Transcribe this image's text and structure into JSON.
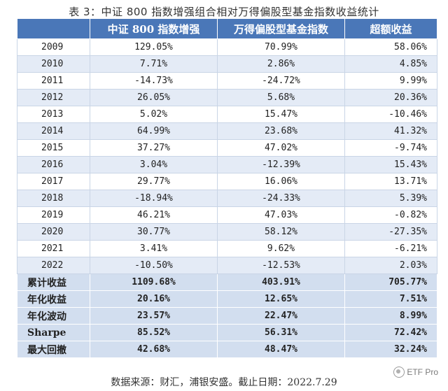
{
  "title": "表 3：中证 800 指数增强组合相对万得偏股型基金指数收益统计",
  "headers": [
    "",
    "中证 800 指数增强",
    "万得偏股型基金指数",
    "超额收益"
  ],
  "rows": [
    {
      "year": "2009",
      "a": "129.05%",
      "b": "70.99%",
      "c": "58.06%"
    },
    {
      "year": "2010",
      "a": "7.71%",
      "b": "2.86%",
      "c": "4.85%"
    },
    {
      "year": "2011",
      "a": "-14.73%",
      "b": "-24.72%",
      "c": "9.99%"
    },
    {
      "year": "2012",
      "a": "26.05%",
      "b": "5.68%",
      "c": "20.36%"
    },
    {
      "year": "2013",
      "a": "5.02%",
      "b": "15.47%",
      "c": "-10.46%"
    },
    {
      "year": "2014",
      "a": "64.99%",
      "b": "23.68%",
      "c": "41.32%"
    },
    {
      "year": "2015",
      "a": "37.27%",
      "b": "47.02%",
      "c": "-9.74%"
    },
    {
      "year": "2016",
      "a": "3.04%",
      "b": "-12.39%",
      "c": "15.43%"
    },
    {
      "year": "2017",
      "a": "29.77%",
      "b": "16.06%",
      "c": "13.71%"
    },
    {
      "year": "2018",
      "a": "-18.94%",
      "b": "-24.33%",
      "c": "5.39%"
    },
    {
      "year": "2019",
      "a": "46.21%",
      "b": "47.03%",
      "c": "-0.82%"
    },
    {
      "year": "2020",
      "a": "30.77%",
      "b": "58.12%",
      "c": "-27.35%"
    },
    {
      "year": "2021",
      "a": "3.41%",
      "b": "9.62%",
      "c": "-6.21%"
    },
    {
      "year": "2022",
      "a": "-10.50%",
      "b": "-12.53%",
      "c": "2.03%"
    }
  ],
  "summary": [
    {
      "label": "累计收益",
      "a": "1109.68%",
      "b": "403.91%",
      "c": "705.77%"
    },
    {
      "label": "年化收益",
      "a": "20.16%",
      "b": "12.65%",
      "c": "7.51%"
    },
    {
      "label": "年化波动",
      "a": "23.57%",
      "b": "22.47%",
      "c": "8.99%"
    },
    {
      "label": "Sharpe",
      "a": "85.52%",
      "b": "56.31%",
      "c": "72.42%"
    },
    {
      "label": "最大回撤",
      "a": "42.68%",
      "b": "48.47%",
      "c": "32.24%"
    }
  ],
  "footer": "数据来源：财汇，浦银安盛。截止日期：2022.7.29",
  "watermark": "ETF Pro",
  "colors": {
    "header_bg": "#4a77b8",
    "stripe": "#e4ebf6",
    "summary_bg": "#d2deef"
  }
}
